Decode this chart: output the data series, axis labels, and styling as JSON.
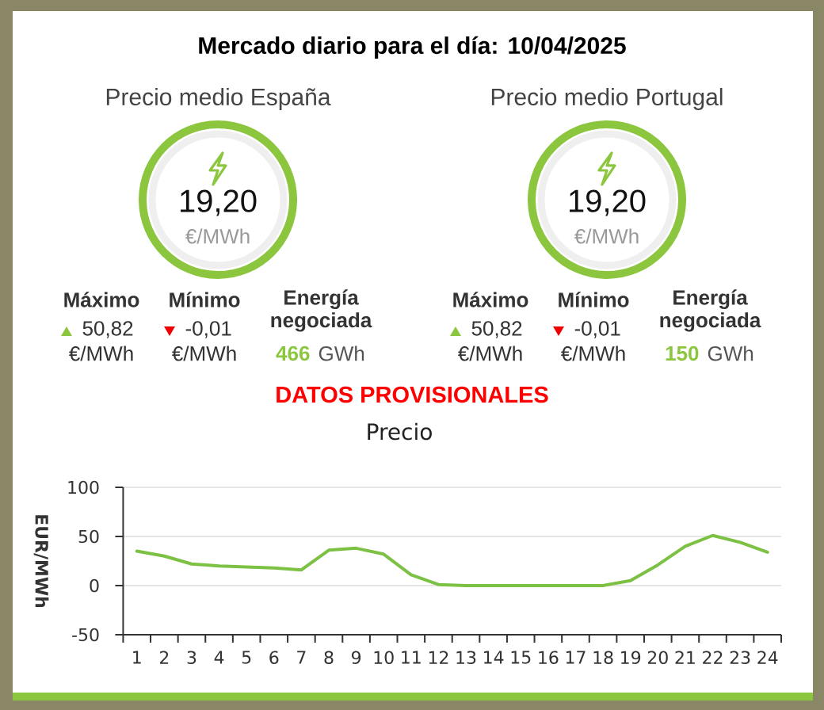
{
  "chart_data": [
    {
      "type": "other",
      "title": "Mercado diario para el día: 10/04/2025",
      "annotations": [
        "Precio medio España",
        "19,20",
        "€/MWh",
        "Máximo",
        "50,82",
        "€/MWh",
        "Mínimo",
        "-0,01",
        "€/MWh",
        "Energía negociada",
        "466",
        "GWh",
        "Precio medio Portugal",
        "19,20",
        "€/MWh",
        "Máximo",
        "50,82",
        "€/MWh",
        "Mínimo",
        "-0,01",
        "€/MWh",
        "Energía negociada",
        "150",
        "GWh",
        "DATOS PROVISIONALES"
      ]
    },
    {
      "type": "line",
      "title": "Precio",
      "ylabel": "EUR/MWh",
      "categories": [
        "1",
        "2",
        "3",
        "4",
        "5",
        "6",
        "7",
        "8",
        "9",
        "10",
        "11",
        "12",
        "13",
        "14",
        "15",
        "16",
        "17",
        "18",
        "19",
        "20",
        "21",
        "22",
        "23",
        "24"
      ],
      "values": [
        35,
        30,
        22,
        20,
        19,
        18,
        16,
        36,
        38,
        32,
        11,
        1,
        0,
        0,
        0,
        0,
        0,
        0,
        5,
        21,
        40,
        51,
        44,
        34
      ],
      "color": "#7cc143",
      "ylim": [
        -50,
        100
      ],
      "yticks": [
        -50,
        0,
        50,
        100
      ],
      "grid": "y"
    }
  ]
}
